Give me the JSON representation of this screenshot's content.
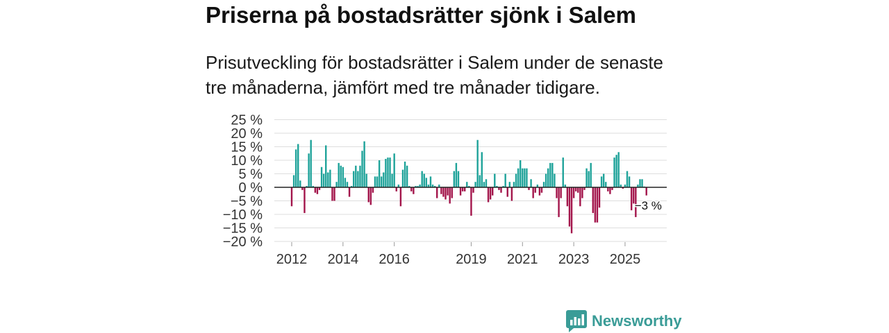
{
  "chart_data": {
    "type": "bar",
    "title": "Priserna på bostadsrätter sjönk i Salem",
    "subtitle": "Prisutveckling för bostadsrätter i Salem under de senaste tre månaderna, jämfört med tre månader tidigare.",
    "xlabel": "",
    "ylabel": "",
    "ylim": [
      -20,
      25
    ],
    "grid": true,
    "y_ticks": [
      25,
      20,
      15,
      10,
      5,
      0,
      -5,
      -10,
      -15,
      -20
    ],
    "y_tick_labels": [
      "25 %",
      "20 %",
      "15 %",
      "10 %",
      "5 %",
      "0 %",
      "−5 %",
      "−10 %",
      "−15 %",
      "−20 %"
    ],
    "x_ticks": [
      2012,
      2014,
      2016,
      2019,
      2021,
      2023,
      2025
    ],
    "x_tick_labels": [
      "2012",
      "2014",
      "2016",
      "2019",
      "2021",
      "2023",
      "2025"
    ],
    "x_start": 2012,
    "x_step": 0.083333,
    "values": [
      -7,
      4.5,
      14,
      16,
      2.5,
      -1,
      -9.5,
      0.5,
      12.5,
      17.5,
      0.5,
      -2,
      -2.5,
      -1,
      7.5,
      5,
      15.5,
      5.5,
      6.5,
      -5,
      -5,
      2,
      9,
      8,
      7.5,
      3.5,
      2,
      -3.5,
      0.5,
      6,
      8,
      6,
      8,
      13.5,
      17,
      5,
      -5.5,
      -6.5,
      -2,
      4,
      4,
      10,
      4,
      5.5,
      10.5,
      11,
      11,
      5,
      12.5,
      -1.5,
      1,
      -7,
      6.5,
      9.5,
      8,
      0.5,
      -1.5,
      -2.5,
      0.5,
      0.5,
      1,
      6,
      5,
      3.5,
      1,
      4,
      1,
      0.5,
      -4,
      1,
      -2.5,
      -3.5,
      -4.5,
      -3,
      -6,
      -4,
      6,
      9,
      6,
      -3,
      -1.5,
      -1.5,
      2,
      0.5,
      -10.5,
      -2,
      2,
      17.5,
      4.5,
      13,
      2,
      3,
      -5.5,
      -4.5,
      -3,
      5,
      0.5,
      -1,
      -2,
      0.5,
      5,
      -3.5,
      2,
      -5,
      2,
      5,
      7,
      10,
      7,
      7,
      7,
      -1,
      3,
      -4,
      -2,
      1,
      -3,
      -2,
      2,
      5,
      7,
      9,
      9,
      5,
      -4,
      -11,
      -4,
      11,
      1,
      -7,
      -14.5,
      -17,
      -4,
      -1.5,
      -2,
      -7,
      -4,
      -1,
      7,
      6,
      9,
      -9.5,
      -13,
      -13,
      -7.5,
      4,
      5,
      2,
      -1.5,
      -2.5,
      -1,
      11,
      12,
      13,
      1,
      -0.5,
      1,
      6,
      4,
      -8.5,
      -6,
      -11,
      1,
      3,
      3,
      0.3,
      -3
    ],
    "annotation": {
      "label": "−3 %",
      "value": -3
    },
    "colors": {
      "positive": "#1fa39a",
      "negative": "#a3154b",
      "zero_line": "#222222",
      "grid": "#dddddd",
      "tick": "#999999"
    }
  },
  "branding": {
    "logo_text": "Newsworthy",
    "logo_icon": "newsworthy-logo-icon",
    "color": "#3a9c97"
  }
}
